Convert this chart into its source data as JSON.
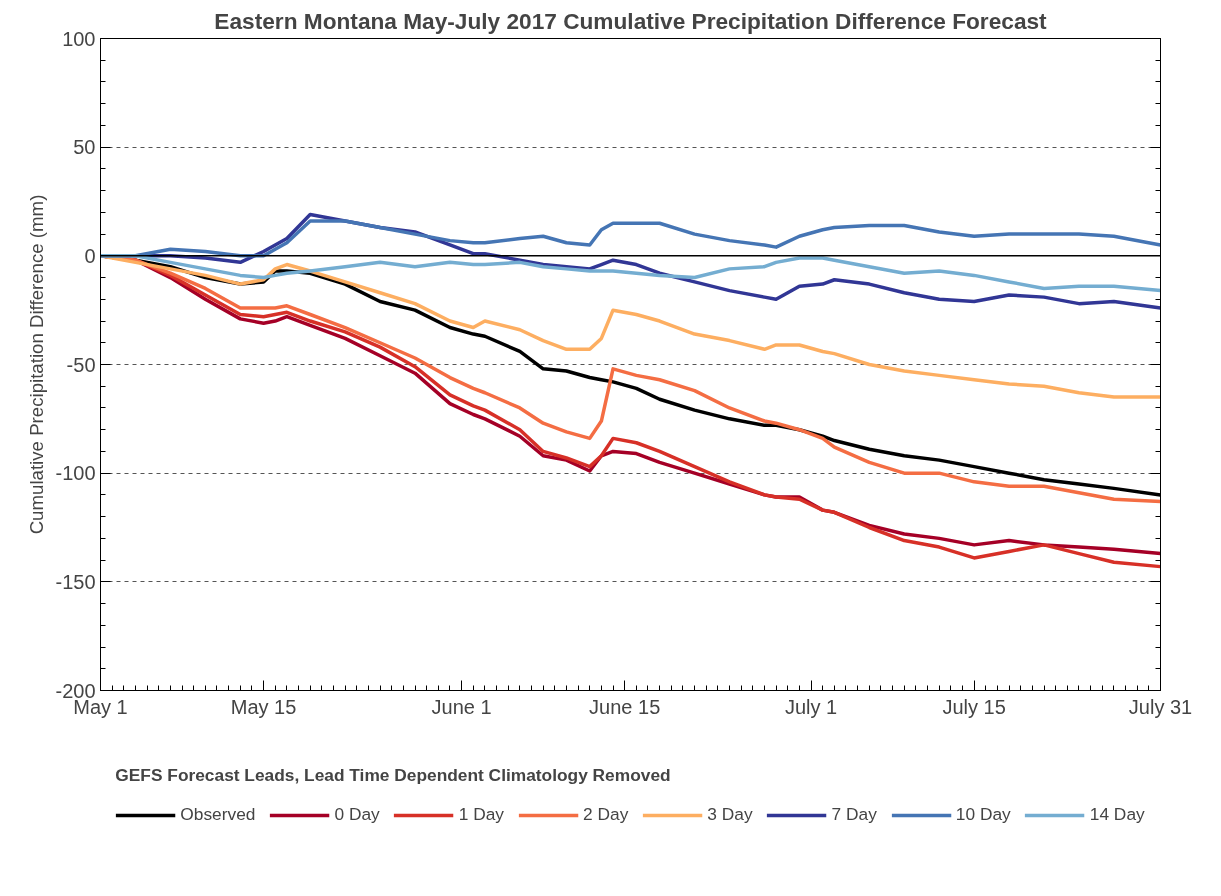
{
  "chart_data": {
    "type": "line",
    "title": "Eastern Montana May-July 2017 Cumulative Precipitation Difference Forecast",
    "ylabel": "Cumulative Precipitation Difference (mm)",
    "legend_title": "GEFS Forecast Leads, Lead Time Dependent Climatology Removed",
    "x": [
      "2017-05-01",
      "2017-05-04",
      "2017-05-07",
      "2017-05-10",
      "2017-05-13",
      "2017-05-15",
      "2017-05-16",
      "2017-05-17",
      "2017-05-19",
      "2017-05-22",
      "2017-05-25",
      "2017-05-28",
      "2017-05-31",
      "2017-06-02",
      "2017-06-03",
      "2017-06-06",
      "2017-06-08",
      "2017-06-10",
      "2017-06-12",
      "2017-06-13",
      "2017-06-14",
      "2017-06-16",
      "2017-06-18",
      "2017-06-21",
      "2017-06-24",
      "2017-06-27",
      "2017-06-28",
      "2017-06-30",
      "2017-07-02",
      "2017-07-03",
      "2017-07-06",
      "2017-07-09",
      "2017-07-12",
      "2017-07-15",
      "2017-07-18",
      "2017-07-21",
      "2017-07-24",
      "2017-07-27",
      "2017-07-31"
    ],
    "series": [
      {
        "name": "Observed",
        "color": "#000000",
        "values": [
          0,
          -2,
          -5,
          -10,
          -13,
          -12,
          -7,
          -7,
          -8,
          -13,
          -21,
          -25,
          -33,
          -36,
          -37,
          -44,
          -52,
          -53,
          -56,
          -57,
          -58,
          -61,
          -66,
          -71,
          -75,
          -78,
          -78,
          -80,
          -83,
          -85,
          -89,
          -92,
          -94,
          -97,
          -100,
          -103,
          -105,
          -107,
          -110
        ]
      },
      {
        "name": "0 Day",
        "color": "#a50026",
        "values": [
          0,
          -2,
          -10,
          -20,
          -29,
          -31,
          -30,
          -28,
          -32,
          -38,
          -46,
          -54,
          -68,
          -73,
          -75,
          -83,
          -92,
          -94,
          -99,
          -92,
          -90,
          -91,
          -95,
          -100,
          -105,
          -110,
          -111,
          -111,
          -117,
          -118,
          -124,
          -128,
          -130,
          -133,
          -131,
          -133,
          -134,
          -135,
          -137
        ]
      },
      {
        "name": "1 Day",
        "color": "#d73027",
        "values": [
          0,
          -2,
          -9,
          -18,
          -27,
          -28,
          -27,
          -26,
          -30,
          -35,
          -42,
          -51,
          -64,
          -69,
          -71,
          -80,
          -90,
          -93,
          -97,
          -92,
          -84,
          -86,
          -90,
          -97,
          -104,
          -110,
          -111,
          -112,
          -117,
          -118,
          -125,
          -131,
          -134,
          -139,
          -136,
          -133,
          -137,
          -141,
          -143
        ]
      },
      {
        "name": "2 Day",
        "color": "#f46d43",
        "values": [
          0,
          -2,
          -8,
          -15,
          -24,
          -24,
          -24,
          -23,
          -27,
          -33,
          -40,
          -47,
          -56,
          -61,
          -63,
          -70,
          -77,
          -81,
          -84,
          -76,
          -52,
          -55,
          -57,
          -62,
          -70,
          -76,
          -77,
          -80,
          -84,
          -88,
          -95,
          -100,
          -100,
          -104,
          -106,
          -106,
          -109,
          -112,
          -113
        ]
      },
      {
        "name": "3 Day",
        "color": "#fdae61",
        "values": [
          0,
          -3,
          -6,
          -9,
          -13,
          -11,
          -6,
          -4,
          -7,
          -12,
          -17,
          -22,
          -30,
          -33,
          -30,
          -34,
          -39,
          -43,
          -43,
          -38,
          -25,
          -27,
          -30,
          -36,
          -39,
          -43,
          -41,
          -41,
          -44,
          -45,
          -50,
          -53,
          -55,
          -57,
          -59,
          -60,
          -63,
          -65,
          -65
        ]
      },
      {
        "name": "7 Day",
        "color": "#313695",
        "values": [
          0,
          0,
          0,
          -1,
          -3,
          2,
          5,
          8,
          19,
          16,
          13,
          11,
          5,
          1,
          1,
          -2,
          -4,
          -5,
          -6,
          -4,
          -2,
          -4,
          -8,
          -12,
          -16,
          -19,
          -20,
          -14,
          -13,
          -11,
          -13,
          -17,
          -20,
          -21,
          -18,
          -19,
          -22,
          -21,
          -24
        ]
      },
      {
        "name": "10 Day",
        "color": "#4575b4",
        "values": [
          0,
          0,
          3,
          2,
          0,
          0,
          3,
          6,
          16,
          16,
          13,
          10,
          7,
          6,
          6,
          8,
          9,
          6,
          5,
          12,
          15,
          15,
          15,
          10,
          7,
          5,
          4,
          9,
          12,
          13,
          14,
          14,
          11,
          9,
          10,
          10,
          10,
          9,
          5
        ]
      },
      {
        "name": "14 Day",
        "color": "#74add1",
        "values": [
          0,
          0,
          -3,
          -6,
          -9,
          -10,
          -9,
          -8,
          -7,
          -5,
          -3,
          -5,
          -3,
          -4,
          -4,
          -3,
          -5,
          -6,
          -7,
          -7,
          -7,
          -8,
          -9,
          -10,
          -6,
          -5,
          -3,
          -1,
          -1,
          -2,
          -5,
          -8,
          -7,
          -9,
          -12,
          -15,
          -14,
          -14,
          -16
        ]
      }
    ],
    "xlim": [
      "2017-05-01",
      "2017-07-31"
    ],
    "xticks": [
      {
        "value": "2017-05-01",
        "label": "May 1"
      },
      {
        "value": "2017-05-15",
        "label": "May 15"
      },
      {
        "value": "2017-06-01",
        "label": "June 1"
      },
      {
        "value": "2017-06-15",
        "label": "June 15"
      },
      {
        "value": "2017-07-01",
        "label": "July 1"
      },
      {
        "value": "2017-07-15",
        "label": "July 15"
      },
      {
        "value": "2017-07-31",
        "label": "July 31"
      }
    ],
    "ylim": [
      -200,
      100
    ],
    "yticks": [
      -200,
      -150,
      -100,
      -50,
      0,
      50,
      100
    ],
    "ref_lines": [
      {
        "axis": "y",
        "value": 0,
        "color": "#000000",
        "line_style": "solid"
      }
    ],
    "grid": "y",
    "legend": "bottom",
    "marker": "none",
    "line_style": "solid"
  }
}
